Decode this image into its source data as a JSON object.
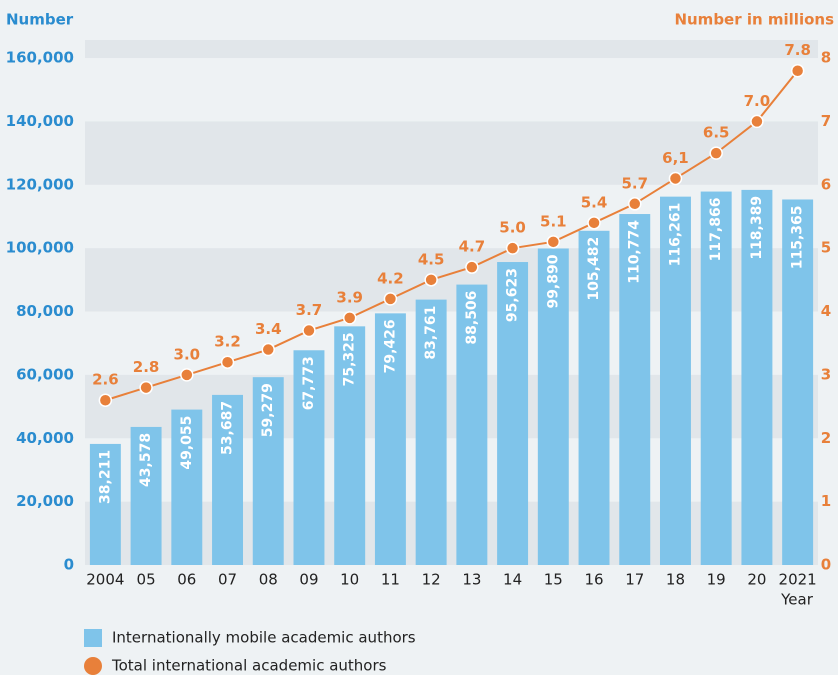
{
  "chart_data": {
    "type": "bar",
    "y_label": "Number",
    "y2_label": "Number in millions",
    "x_label": "Year",
    "categories": [
      "2004",
      "05",
      "06",
      "07",
      "08",
      "09",
      "10",
      "11",
      "12",
      "13",
      "14",
      "15",
      "16",
      "17",
      "18",
      "19",
      "20",
      "2021"
    ],
    "series": [
      {
        "name": "Internationally mobile academic authors",
        "type": "bar",
        "color": "#7fc4ea",
        "values": [
          38211,
          43578,
          49055,
          53687,
          59279,
          67773,
          75325,
          79426,
          83761,
          88506,
          95623,
          99890,
          105482,
          110774,
          116261,
          117866,
          118389,
          115365
        ],
        "value_labels": [
          "38,211",
          "43,578",
          "49,055",
          "53,687",
          "59,279",
          "67,773",
          "75,325",
          "79,426",
          "83,761",
          "88,506",
          "95,623",
          "99,890",
          "105,482",
          "110,774",
          "116,261",
          "117,866",
          "118,389",
          "115,365"
        ]
      },
      {
        "name": "Total international academic authors",
        "type": "line",
        "axis": "y2",
        "color": "#e8803a",
        "values": [
          2.6,
          2.8,
          3.0,
          3.2,
          3.4,
          3.7,
          3.9,
          4.2,
          4.5,
          4.7,
          5.0,
          5.1,
          5.4,
          5.7,
          6.1,
          6.5,
          7.0,
          7.8
        ],
        "value_labels": [
          "2.6",
          "2.8",
          "3.0",
          "3.2",
          "3.4",
          "3.7",
          "3.9",
          "4.2",
          "4.5",
          "4.7",
          "5.0",
          "5.1",
          "5.4",
          "5.7",
          "6,1",
          "6.5",
          "7.0",
          "7.8"
        ]
      }
    ],
    "ylim": [
      0,
      165700
    ],
    "yticks": [
      0,
      {
        "value": 20000,
        "label": "20,000"
      },
      {
        "value": 40000,
        "label": "40,000"
      },
      {
        "value": 60000,
        "label": "60,000"
      },
      {
        "value": 80000,
        "label": "80,000"
      },
      {
        "value": 100000,
        "label": "100,000"
      },
      {
        "value": 120000,
        "label": "120,000"
      },
      {
        "value": 140000,
        "label": "140,000"
      },
      {
        "value": 160000,
        "label": "160,000"
      }
    ],
    "y2lim": [
      0,
      8.285
    ],
    "y2ticks": [
      0,
      1,
      2,
      3,
      4,
      5,
      6,
      7,
      8
    ],
    "grid": true
  }
}
